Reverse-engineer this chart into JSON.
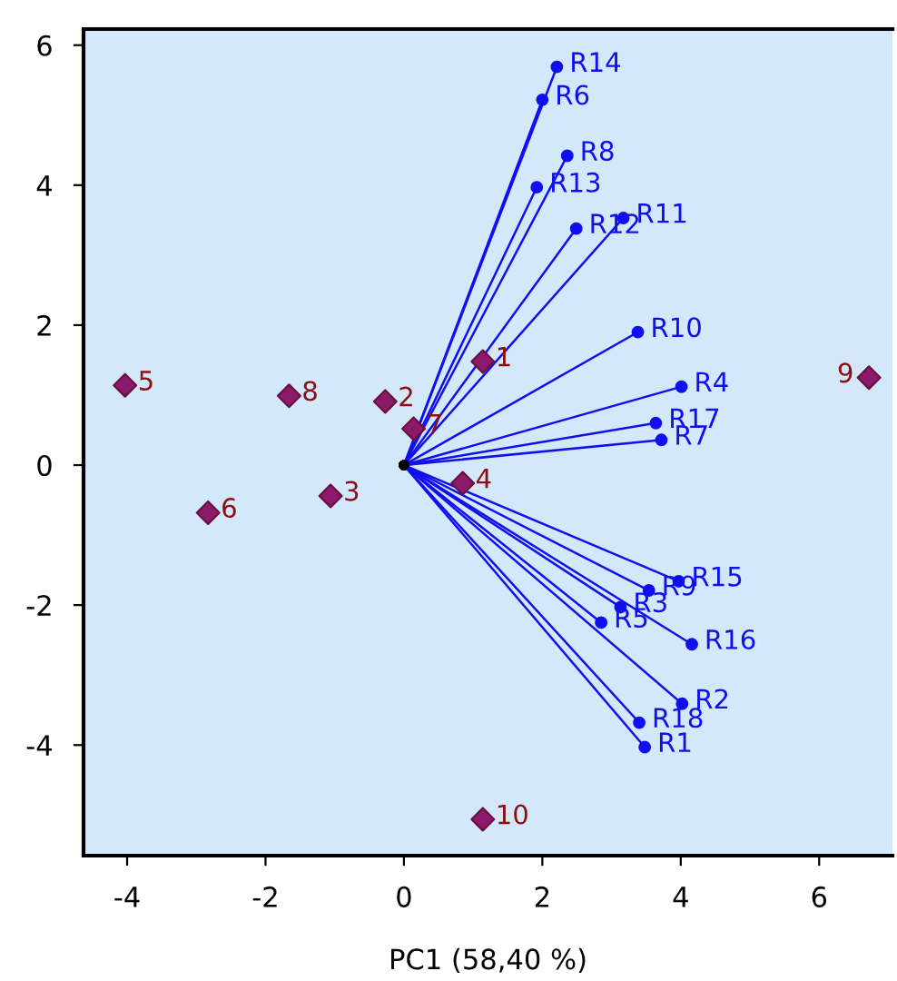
{
  "chart_data": {
    "type": "scatter",
    "xlabel": "PC1 (58,40 %)",
    "xlim": [
      -4.63,
      7.06
    ],
    "ylim": [
      -5.58,
      6.23
    ],
    "xticks": [
      -4,
      -2,
      0,
      2,
      4,
      6
    ],
    "yticks": [
      -4,
      -2,
      0,
      2,
      4,
      6
    ],
    "grid": false,
    "series": [
      {
        "marker": "diamond",
        "color": "#8b1a6b",
        "x": [
          1.14,
          -0.27,
          -1.06,
          0.85,
          -4.03,
          -2.83,
          0.14,
          -1.66,
          6.72,
          1.14
        ],
        "values": [
          1.48,
          0.91,
          -0.44,
          -0.26,
          1.14,
          -0.68,
          0.52,
          0.99,
          1.25,
          -5.06
        ]
      },
      {
        "type": "line",
        "marker": "circle",
        "color": "#1010ee",
        "x": [
          0,
          3.48
        ],
        "values": [
          0,
          -4.03
        ]
      },
      {
        "type": "line",
        "marker": "circle",
        "color": "#1010ee",
        "x": [
          0,
          4.02
        ],
        "values": [
          0,
          -3.41
        ]
      },
      {
        "type": "line",
        "marker": "circle",
        "color": "#1010ee",
        "x": [
          0,
          3.13
        ],
        "values": [
          0,
          -2.03
        ]
      },
      {
        "type": "line",
        "marker": "circle",
        "color": "#1010ee",
        "x": [
          0,
          4.01
        ],
        "values": [
          0,
          1.12
        ]
      },
      {
        "type": "line",
        "marker": "circle",
        "color": "#1010ee",
        "x": [
          0,
          2.85
        ],
        "values": [
          0,
          -2.25
        ]
      },
      {
        "type": "line",
        "marker": "circle",
        "color": "#1010ee",
        "x": [
          0,
          2.0
        ],
        "values": [
          0,
          5.22
        ]
      },
      {
        "type": "line",
        "marker": "circle",
        "color": "#1010ee",
        "x": [
          0,
          3.72
        ],
        "values": [
          0,
          0.36
        ]
      },
      {
        "type": "line",
        "marker": "circle",
        "color": "#1010ee",
        "x": [
          0,
          2.36
        ],
        "values": [
          0,
          4.42
        ]
      },
      {
        "type": "line",
        "marker": "circle",
        "color": "#1010ee",
        "x": [
          0,
          3.54
        ],
        "values": [
          0,
          -1.79
        ]
      },
      {
        "type": "line",
        "marker": "circle",
        "color": "#1010ee",
        "x": [
          0,
          3.38
        ],
        "values": [
          0,
          1.9
        ]
      },
      {
        "type": "line",
        "marker": "circle",
        "color": "#1010ee",
        "x": [
          0,
          3.17
        ],
        "values": [
          0,
          3.53
        ]
      },
      {
        "type": "line",
        "marker": "circle",
        "color": "#1010ee",
        "x": [
          0,
          2.49
        ],
        "values": [
          0,
          3.38
        ]
      },
      {
        "type": "line",
        "marker": "circle",
        "color": "#1010ee",
        "x": [
          0,
          1.92
        ],
        "values": [
          0,
          3.97
        ]
      },
      {
        "type": "line",
        "marker": "circle",
        "color": "#1010ee",
        "x": [
          0,
          2.21
        ],
        "values": [
          0,
          5.69
        ]
      },
      {
        "type": "line",
        "marker": "circle",
        "color": "#1010ee",
        "x": [
          0,
          3.97
        ],
        "values": [
          0,
          -1.66
        ]
      },
      {
        "type": "line",
        "marker": "circle",
        "color": "#1010ee",
        "x": [
          0,
          4.16
        ],
        "values": [
          0,
          -2.56
        ]
      },
      {
        "type": "line",
        "marker": "circle",
        "color": "#1010ee",
        "x": [
          0,
          3.64
        ],
        "values": [
          0,
          0.6
        ]
      },
      {
        "type": "line",
        "marker": "circle",
        "color": "#1010ee",
        "x": [
          0,
          3.4
        ],
        "values": [
          0,
          -3.68
        ]
      }
    ],
    "annotations": [
      {
        "text": "1",
        "x": 1.14,
        "y": 1.48
      },
      {
        "text": "2",
        "x": -0.27,
        "y": 0.91
      },
      {
        "text": "3",
        "x": -1.06,
        "y": -0.44
      },
      {
        "text": "4",
        "x": 0.85,
        "y": -0.26
      },
      {
        "text": "5",
        "x": -4.03,
        "y": 1.14
      },
      {
        "text": "6",
        "x": -2.83,
        "y": -0.68
      },
      {
        "text": "7",
        "x": 0.14,
        "y": 0.52
      },
      {
        "text": "8",
        "x": -1.66,
        "y": 0.99
      },
      {
        "text": "9",
        "x": 6.72,
        "y": 1.25
      },
      {
        "text": "10",
        "x": 1.14,
        "y": -5.06
      },
      {
        "text": "R1",
        "x": 3.48,
        "y": -4.03
      },
      {
        "text": "R2",
        "x": 4.02,
        "y": -3.41
      },
      {
        "text": "R3",
        "x": 3.13,
        "y": -2.03
      },
      {
        "text": "R4",
        "x": 4.01,
        "y": 1.12
      },
      {
        "text": "R5",
        "x": 2.85,
        "y": -2.25
      },
      {
        "text": "R6",
        "x": 2.0,
        "y": 5.22
      },
      {
        "text": "R7",
        "x": 3.72,
        "y": 0.36
      },
      {
        "text": "R8",
        "x": 2.36,
        "y": 4.42
      },
      {
        "text": "R9",
        "x": 3.54,
        "y": -1.79
      },
      {
        "text": "R10",
        "x": 3.38,
        "y": 1.9
      },
      {
        "text": "R11",
        "x": 3.17,
        "y": 3.53
      },
      {
        "text": "R12",
        "x": 2.49,
        "y": 3.38
      },
      {
        "text": "R13",
        "x": 1.92,
        "y": 3.97
      },
      {
        "text": "R14",
        "x": 2.21,
        "y": 5.69
      },
      {
        "text": "R15",
        "x": 3.97,
        "y": -1.66
      },
      {
        "text": "R16",
        "x": 4.16,
        "y": -2.56
      },
      {
        "text": "R17",
        "x": 3.64,
        "y": 0.6
      },
      {
        "text": "R18",
        "x": 3.4,
        "y": -3.68
      }
    ]
  }
}
